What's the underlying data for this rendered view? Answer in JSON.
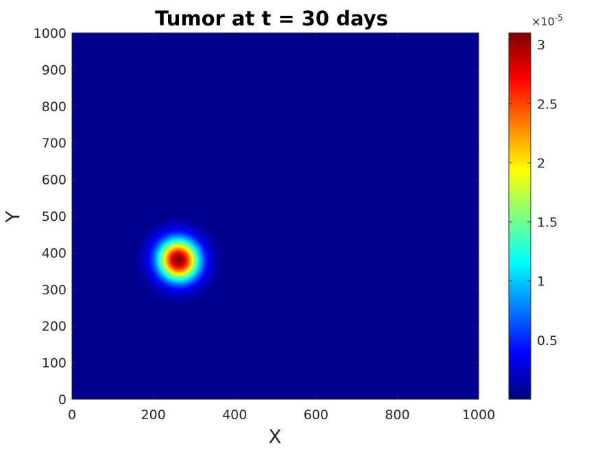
{
  "chart_data": {
    "type": "heatmap",
    "title": "Tumor at t = 30 days",
    "xlabel": "X",
    "ylabel": "Y",
    "xlim": [
      0,
      1000
    ],
    "ylim": [
      0,
      1000
    ],
    "xticks": [
      0,
      200,
      400,
      600,
      800,
      1000
    ],
    "yticks": [
      0,
      100,
      200,
      300,
      400,
      500,
      600,
      700,
      800,
      900,
      1000
    ],
    "colormap": "jet",
    "background_color": "#00008f",
    "field": {
      "peak_center": [
        262,
        380
      ],
      "peak_value": 3.1e-05,
      "spread_x": 34,
      "spread_y": 39,
      "tilt_degrees": -35
    },
    "colorbar": {
      "range": [
        0,
        3.1e-05
      ],
      "exponent_label": "×10",
      "exponent_power": "-5",
      "ticks": [
        0.5,
        1,
        1.5,
        2,
        2.5,
        3
      ],
      "tick_labels": [
        "0.5",
        "1",
        "1.5",
        "2",
        "2.5",
        "3"
      ]
    }
  }
}
